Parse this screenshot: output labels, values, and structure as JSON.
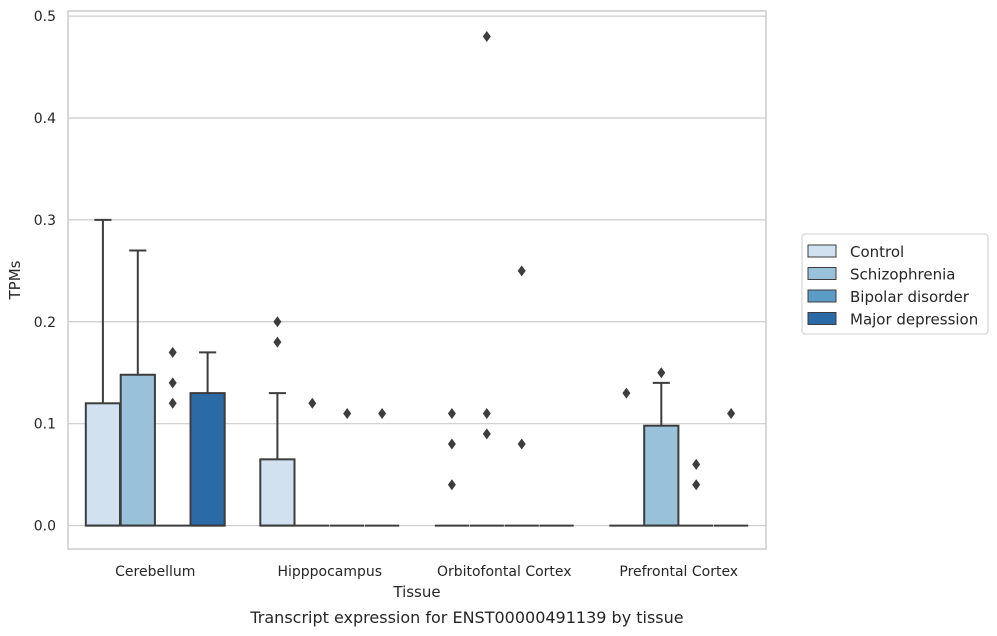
{
  "chart_data": {
    "type": "box",
    "xlabel": "Tissue",
    "ylabel": "TPMs",
    "caption": "Transcript expression for ENST00000491139 by tissue",
    "ylim": [
      -0.023,
      0.505
    ],
    "yticks": [
      0.0,
      0.1,
      0.2,
      0.3,
      0.4,
      0.5
    ],
    "ytick_labels": [
      "0.0",
      "0.1",
      "0.2",
      "0.3",
      "0.4",
      "0.5"
    ],
    "grid": "horizontal",
    "legend_position": "right",
    "categories": [
      "Cerebellum",
      "Hipppocampus",
      "Orbitofontal Cortex",
      "Prefrontal Cortex"
    ],
    "series": [
      {
        "name": "Control",
        "color": "#d1e1ef",
        "boxes": [
          {
            "q1": 0.0,
            "median": 0.0,
            "q3": 0.12,
            "whisker_low": 0.0,
            "whisker_high": 0.3,
            "outliers": []
          },
          {
            "q1": 0.0,
            "median": 0.0,
            "q3": 0.065,
            "whisker_low": 0.0,
            "whisker_high": 0.13,
            "outliers": [
              0.2,
              0.18
            ]
          },
          {
            "q1": 0.0,
            "median": 0.0,
            "q3": 0.0,
            "whisker_low": 0.0,
            "whisker_high": 0.0,
            "outliers": [
              0.11,
              0.08,
              0.04
            ]
          },
          {
            "q1": 0.0,
            "median": 0.0,
            "q3": 0.0,
            "whisker_low": 0.0,
            "whisker_high": 0.0,
            "outliers": [
              0.13
            ]
          }
        ]
      },
      {
        "name": "Schizophrenia",
        "color": "#9ac1da",
        "boxes": [
          {
            "q1": 0.0,
            "median": 0.0,
            "q3": 0.148,
            "whisker_low": 0.0,
            "whisker_high": 0.27,
            "outliers": []
          },
          {
            "q1": 0.0,
            "median": 0.0,
            "q3": 0.0,
            "whisker_low": 0.0,
            "whisker_high": 0.0,
            "outliers": [
              0.12
            ]
          },
          {
            "q1": 0.0,
            "median": 0.0,
            "q3": 0.0,
            "whisker_low": 0.0,
            "whisker_high": 0.0,
            "outliers": [
              0.48,
              0.11,
              0.09
            ]
          },
          {
            "q1": 0.0,
            "median": 0.0,
            "q3": 0.098,
            "whisker_low": 0.0,
            "whisker_high": 0.14,
            "outliers": [
              0.15
            ]
          }
        ]
      },
      {
        "name": "Bipolar disorder",
        "color": "#5a9bc7",
        "boxes": [
          {
            "q1": 0.0,
            "median": 0.0,
            "q3": 0.0,
            "whisker_low": 0.0,
            "whisker_high": 0.0,
            "outliers": [
              0.17,
              0.14,
              0.12
            ]
          },
          {
            "q1": 0.0,
            "median": 0.0,
            "q3": 0.0,
            "whisker_low": 0.0,
            "whisker_high": 0.0,
            "outliers": [
              0.11
            ]
          },
          {
            "q1": 0.0,
            "median": 0.0,
            "q3": 0.0,
            "whisker_low": 0.0,
            "whisker_high": 0.0,
            "outliers": [
              0.25,
              0.08
            ]
          },
          {
            "q1": 0.0,
            "median": 0.0,
            "q3": 0.0,
            "whisker_low": 0.0,
            "whisker_high": 0.0,
            "outliers": [
              0.06,
              0.04
            ]
          }
        ]
      },
      {
        "name": "Major depression",
        "color": "#2a6aa6",
        "boxes": [
          {
            "q1": 0.0,
            "median": 0.0,
            "q3": 0.13,
            "whisker_low": 0.0,
            "whisker_high": 0.17,
            "outliers": []
          },
          {
            "q1": 0.0,
            "median": 0.0,
            "q3": 0.0,
            "whisker_low": 0.0,
            "whisker_high": 0.0,
            "outliers": [
              0.11
            ]
          },
          {
            "q1": 0.0,
            "median": 0.0,
            "q3": 0.0,
            "whisker_low": 0.0,
            "whisker_high": 0.0,
            "outliers": []
          },
          {
            "q1": 0.0,
            "median": 0.0,
            "q3": 0.0,
            "whisker_low": 0.0,
            "whisker_high": 0.0,
            "outliers": [
              0.11
            ]
          }
        ]
      }
    ]
  }
}
